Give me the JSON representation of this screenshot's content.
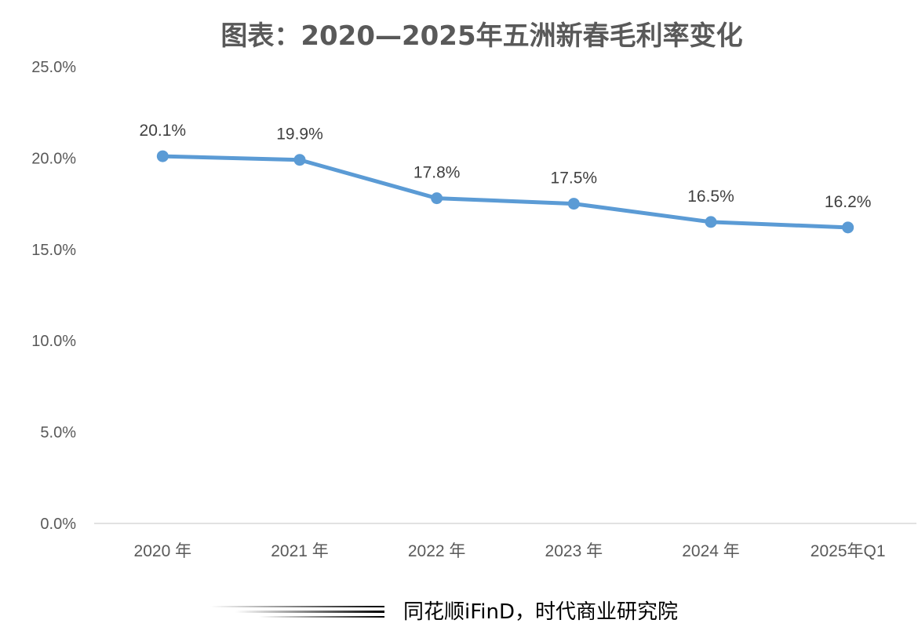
{
  "chart_data": {
    "type": "line",
    "title": "图表：2020—2025年五洲新春毛利率变化",
    "categories": [
      "2020 年",
      "2021 年",
      "2022 年",
      "2023 年",
      "2024 年",
      "2025年Q1"
    ],
    "series": [
      {
        "values": [
          20.1,
          19.9,
          17.8,
          17.5,
          16.5,
          16.2
        ],
        "data_labels": [
          "20.1%",
          "19.9%",
          "17.8%",
          "17.5%",
          "16.5%",
          "16.2%"
        ],
        "color": "#5B9BD5"
      }
    ],
    "ylim": [
      0,
      25
    ],
    "yticks": [
      0,
      5,
      10,
      15,
      20,
      25
    ],
    "ytick_labels": [
      "0.0%",
      "5.0%",
      "10.0%",
      "15.0%",
      "20.0%",
      "25.0%"
    ],
    "grid": false,
    "legend": "none"
  },
  "source": "同花顺iFinD，时代商业研究院",
  "colors": {
    "line": "#5B9BD5",
    "axis": "#D9D9D9",
    "text": "#595959"
  }
}
